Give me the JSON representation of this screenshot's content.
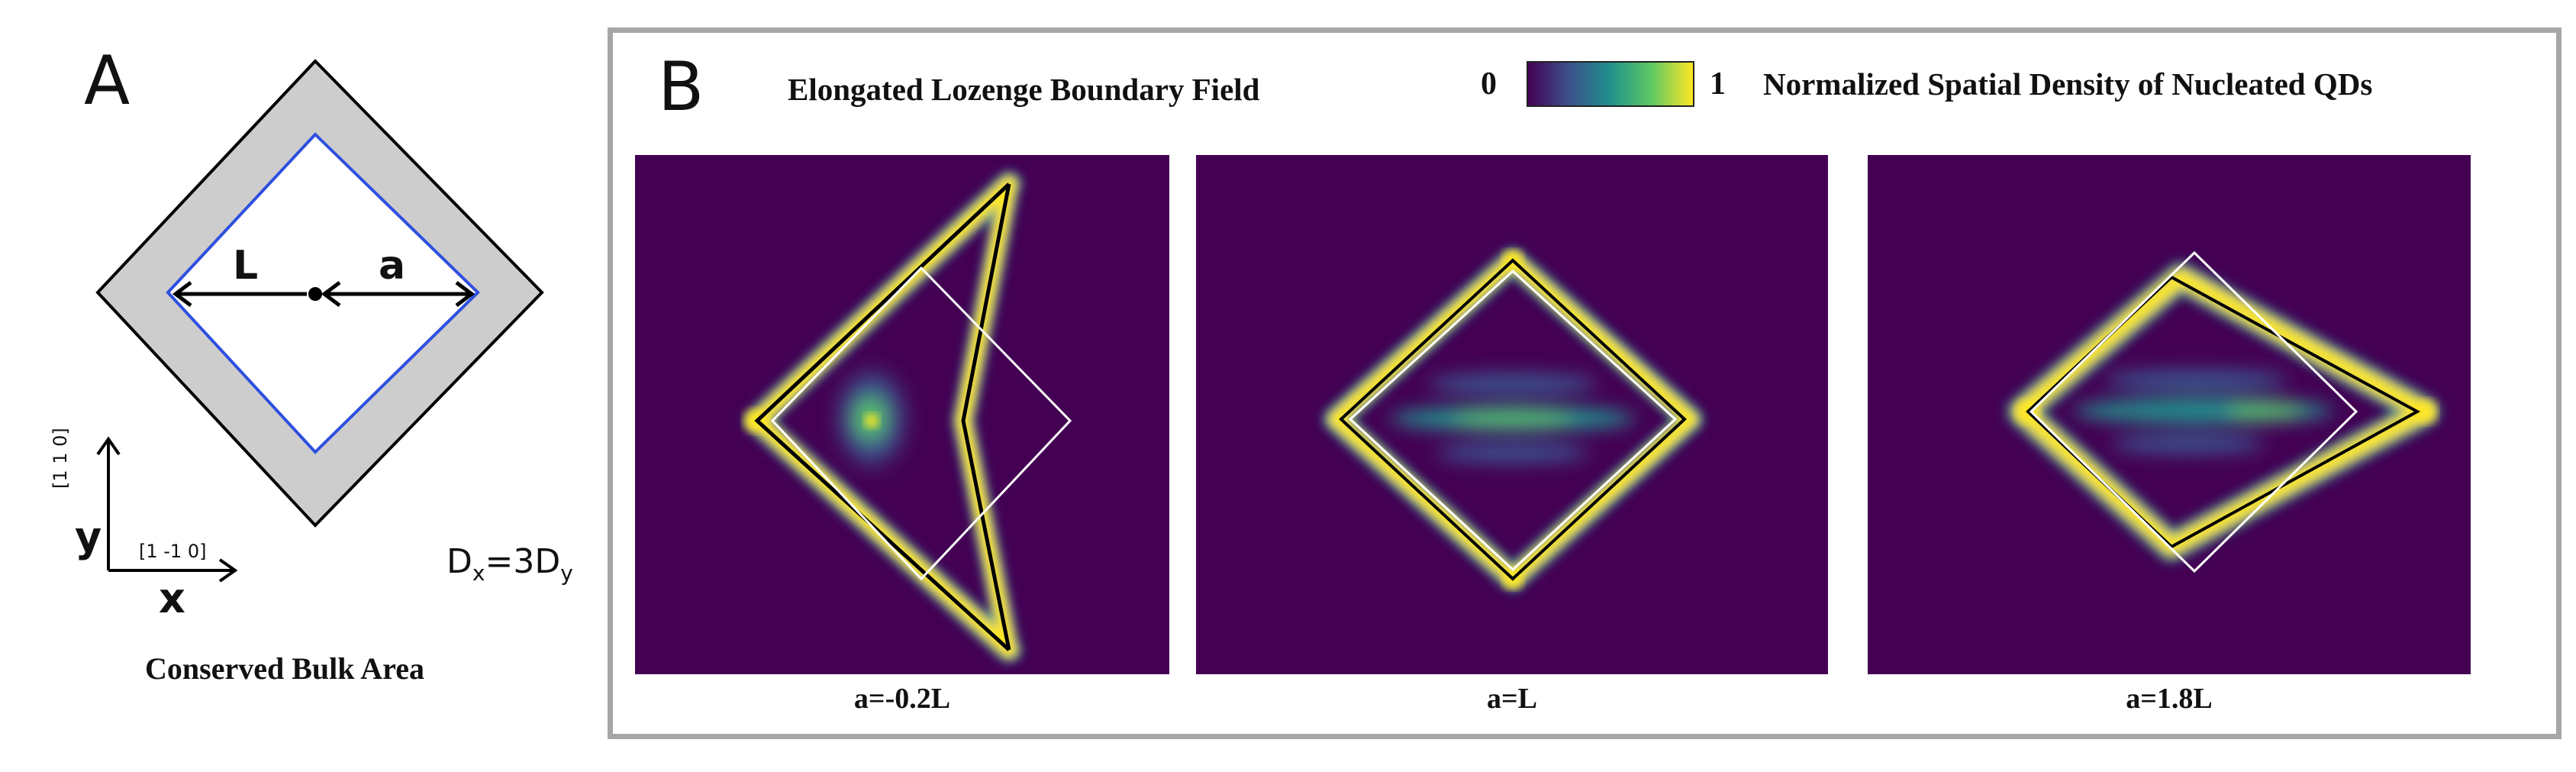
{
  "panel_a": {
    "letter": "A",
    "label_L": "L",
    "label_a": "a",
    "axis_y": "y",
    "axis_x": "x",
    "direction_y": "[1 1 0]",
    "direction_x": "[1 -1 0]",
    "diffusion_main": "D",
    "diffusion_sub_x": "x",
    "diffusion_mid": "=3D",
    "diffusion_sub_y": "y",
    "caption": "Conserved Bulk Area",
    "colors": {
      "outer_fill": "#c8c8c8",
      "inner_boundary": "#2f4fe0",
      "outline": "#000000"
    }
  },
  "panel_b": {
    "letter": "B",
    "title": "Elongated Lozenge Boundary Field",
    "colorbar": {
      "min_label": "0",
      "max_label": "1",
      "label": "Normalized Spatial Density of Nucleated QDs",
      "colormap": [
        "#440154",
        "#3b528b",
        "#21918c",
        "#5ec962",
        "#fde725"
      ]
    },
    "plots": [
      {
        "caption": "a=-0.2L"
      },
      {
        "caption": "a=L"
      },
      {
        "caption": "a=1.8L"
      }
    ],
    "colors": {
      "background": "#440154",
      "frame": "#a6a6a6"
    }
  }
}
